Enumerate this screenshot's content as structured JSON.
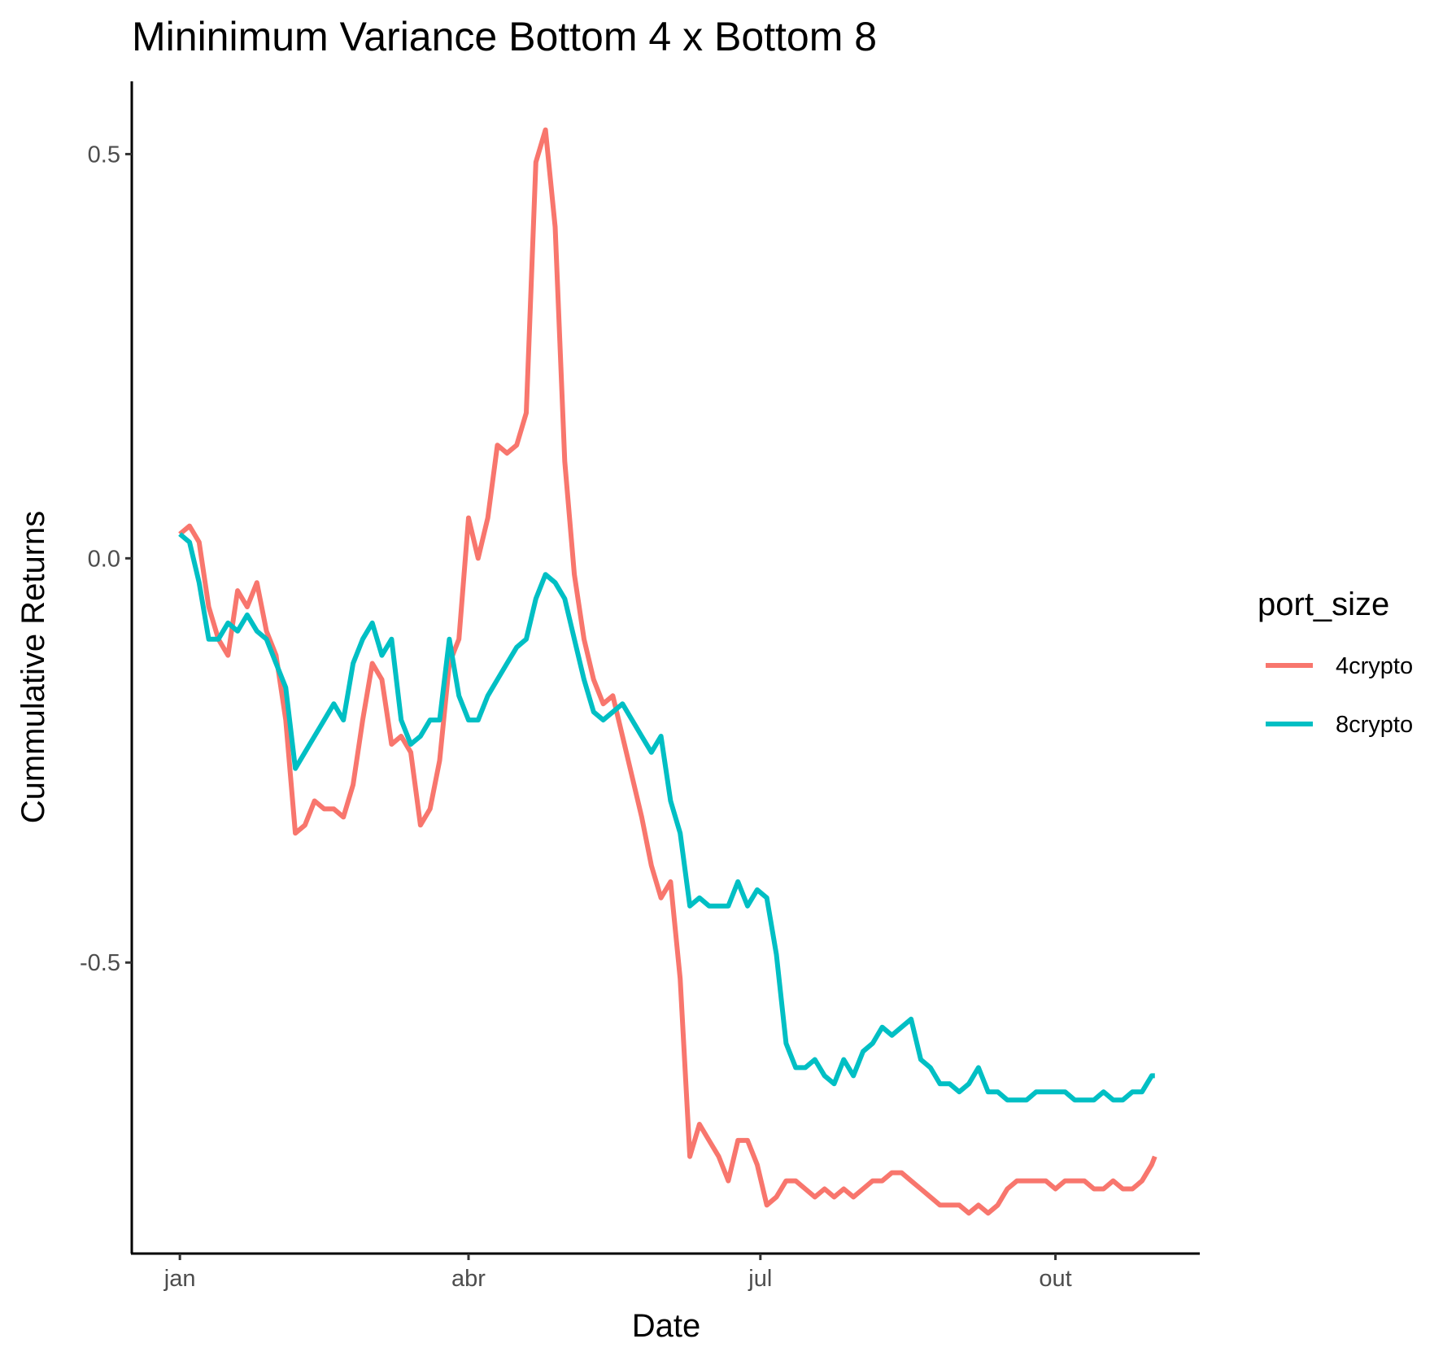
{
  "chart_data": {
    "type": "line",
    "title": "Mininimum Variance  Bottom 4 x Bottom 8",
    "xlabel": "Date",
    "ylabel": "Cummulative Returns",
    "x_ticks": [
      {
        "date": "2021-01-01",
        "label": "jan"
      },
      {
        "date": "2021-04-01",
        "label": "abr"
      },
      {
        "date": "2021-07-01",
        "label": "jul"
      },
      {
        "date": "2021-10-01",
        "label": "out"
      }
    ],
    "y_ticks": [
      {
        "value": 0.5,
        "label": "0.5"
      },
      {
        "value": 0.0,
        "label": "0.0"
      },
      {
        "value": -0.5,
        "label": "-0.5"
      }
    ],
    "xlim": [
      "2020-12-17",
      "2021-11-15"
    ],
    "ylim": [
      -0.86,
      0.59
    ],
    "grid": false,
    "legend": {
      "title": "port_size",
      "position": "right"
    },
    "series": [
      {
        "name": "4crypto",
        "color": "#F8766D",
        "points": [
          [
            "2021-01-01",
            0.03
          ],
          [
            "2021-01-04",
            0.04
          ],
          [
            "2021-01-07",
            0.02
          ],
          [
            "2021-01-10",
            -0.06
          ],
          [
            "2021-01-13",
            -0.1
          ],
          [
            "2021-01-16",
            -0.12
          ],
          [
            "2021-01-19",
            -0.04
          ],
          [
            "2021-01-22",
            -0.06
          ],
          [
            "2021-01-25",
            -0.03
          ],
          [
            "2021-01-28",
            -0.09
          ],
          [
            "2021-01-31",
            -0.12
          ],
          [
            "2021-02-03",
            -0.2
          ],
          [
            "2021-02-06",
            -0.34
          ],
          [
            "2021-02-09",
            -0.33
          ],
          [
            "2021-02-12",
            -0.3
          ],
          [
            "2021-02-15",
            -0.31
          ],
          [
            "2021-02-18",
            -0.31
          ],
          [
            "2021-02-21",
            -0.32
          ],
          [
            "2021-02-24",
            -0.28
          ],
          [
            "2021-02-27",
            -0.2
          ],
          [
            "2021-03-02",
            -0.13
          ],
          [
            "2021-03-05",
            -0.15
          ],
          [
            "2021-03-08",
            -0.23
          ],
          [
            "2021-03-11",
            -0.22
          ],
          [
            "2021-03-14",
            -0.24
          ],
          [
            "2021-03-17",
            -0.33
          ],
          [
            "2021-03-20",
            -0.31
          ],
          [
            "2021-03-23",
            -0.25
          ],
          [
            "2021-03-26",
            -0.13
          ],
          [
            "2021-03-29",
            -0.1
          ],
          [
            "2021-04-01",
            0.05
          ],
          [
            "2021-04-04",
            0.0
          ],
          [
            "2021-04-07",
            0.05
          ],
          [
            "2021-04-10",
            0.14
          ],
          [
            "2021-04-13",
            0.13
          ],
          [
            "2021-04-16",
            0.14
          ],
          [
            "2021-04-19",
            0.18
          ],
          [
            "2021-04-22",
            0.49
          ],
          [
            "2021-04-25",
            0.53
          ],
          [
            "2021-04-28",
            0.41
          ],
          [
            "2021-05-01",
            0.12
          ],
          [
            "2021-05-04",
            -0.02
          ],
          [
            "2021-05-07",
            -0.1
          ],
          [
            "2021-05-10",
            -0.15
          ],
          [
            "2021-05-13",
            -0.18
          ],
          [
            "2021-05-16",
            -0.17
          ],
          [
            "2021-05-19",
            -0.22
          ],
          [
            "2021-05-22",
            -0.27
          ],
          [
            "2021-05-25",
            -0.32
          ],
          [
            "2021-05-28",
            -0.38
          ],
          [
            "2021-05-31",
            -0.42
          ],
          [
            "2021-06-03",
            -0.4
          ],
          [
            "2021-06-06",
            -0.52
          ],
          [
            "2021-06-09",
            -0.74
          ],
          [
            "2021-06-12",
            -0.7
          ],
          [
            "2021-06-15",
            -0.72
          ],
          [
            "2021-06-18",
            -0.74
          ],
          [
            "2021-06-21",
            -0.77
          ],
          [
            "2021-06-24",
            -0.72
          ],
          [
            "2021-06-27",
            -0.72
          ],
          [
            "2021-06-30",
            -0.75
          ],
          [
            "2021-07-03",
            -0.8
          ],
          [
            "2021-07-06",
            -0.79
          ],
          [
            "2021-07-09",
            -0.77
          ],
          [
            "2021-07-12",
            -0.77
          ],
          [
            "2021-07-15",
            -0.78
          ],
          [
            "2021-07-18",
            -0.79
          ],
          [
            "2021-07-21",
            -0.78
          ],
          [
            "2021-07-24",
            -0.79
          ],
          [
            "2021-07-27",
            -0.78
          ],
          [
            "2021-07-30",
            -0.79
          ],
          [
            "2021-08-02",
            -0.78
          ],
          [
            "2021-08-05",
            -0.77
          ],
          [
            "2021-08-08",
            -0.77
          ],
          [
            "2021-08-11",
            -0.76
          ],
          [
            "2021-08-14",
            -0.76
          ],
          [
            "2021-08-17",
            -0.77
          ],
          [
            "2021-08-20",
            -0.78
          ],
          [
            "2021-08-23",
            -0.79
          ],
          [
            "2021-08-26",
            -0.8
          ],
          [
            "2021-08-29",
            -0.8
          ],
          [
            "2021-09-01",
            -0.8
          ],
          [
            "2021-09-04",
            -0.81
          ],
          [
            "2021-09-07",
            -0.8
          ],
          [
            "2021-09-10",
            -0.81
          ],
          [
            "2021-09-13",
            -0.8
          ],
          [
            "2021-09-16",
            -0.78
          ],
          [
            "2021-09-19",
            -0.77
          ],
          [
            "2021-09-22",
            -0.77
          ],
          [
            "2021-09-25",
            -0.77
          ],
          [
            "2021-09-28",
            -0.77
          ],
          [
            "2021-10-01",
            -0.78
          ],
          [
            "2021-10-04",
            -0.77
          ],
          [
            "2021-10-07",
            -0.77
          ],
          [
            "2021-10-10",
            -0.77
          ],
          [
            "2021-10-13",
            -0.78
          ],
          [
            "2021-10-16",
            -0.78
          ],
          [
            "2021-10-19",
            -0.77
          ],
          [
            "2021-10-22",
            -0.78
          ],
          [
            "2021-10-25",
            -0.78
          ],
          [
            "2021-10-28",
            -0.77
          ],
          [
            "2021-10-31",
            -0.75
          ],
          [
            "2021-11-01",
            -0.74
          ]
        ]
      },
      {
        "name": "8crypto",
        "color": "#00BFC4",
        "points": [
          [
            "2021-01-01",
            0.03
          ],
          [
            "2021-01-04",
            0.02
          ],
          [
            "2021-01-07",
            -0.03
          ],
          [
            "2021-01-10",
            -0.1
          ],
          [
            "2021-01-13",
            -0.1
          ],
          [
            "2021-01-16",
            -0.08
          ],
          [
            "2021-01-19",
            -0.09
          ],
          [
            "2021-01-22",
            -0.07
          ],
          [
            "2021-01-25",
            -0.09
          ],
          [
            "2021-01-28",
            -0.1
          ],
          [
            "2021-01-31",
            -0.13
          ],
          [
            "2021-02-03",
            -0.16
          ],
          [
            "2021-02-06",
            -0.26
          ],
          [
            "2021-02-09",
            -0.24
          ],
          [
            "2021-02-12",
            -0.22
          ],
          [
            "2021-02-15",
            -0.2
          ],
          [
            "2021-02-18",
            -0.18
          ],
          [
            "2021-02-21",
            -0.2
          ],
          [
            "2021-02-24",
            -0.13
          ],
          [
            "2021-02-27",
            -0.1
          ],
          [
            "2021-03-02",
            -0.08
          ],
          [
            "2021-03-05",
            -0.12
          ],
          [
            "2021-03-08",
            -0.1
          ],
          [
            "2021-03-11",
            -0.2
          ],
          [
            "2021-03-14",
            -0.23
          ],
          [
            "2021-03-17",
            -0.22
          ],
          [
            "2021-03-20",
            -0.2
          ],
          [
            "2021-03-23",
            -0.2
          ],
          [
            "2021-03-26",
            -0.1
          ],
          [
            "2021-03-29",
            -0.17
          ],
          [
            "2021-04-01",
            -0.2
          ],
          [
            "2021-04-04",
            -0.2
          ],
          [
            "2021-04-07",
            -0.17
          ],
          [
            "2021-04-10",
            -0.15
          ],
          [
            "2021-04-13",
            -0.13
          ],
          [
            "2021-04-16",
            -0.11
          ],
          [
            "2021-04-19",
            -0.1
          ],
          [
            "2021-04-22",
            -0.05
          ],
          [
            "2021-04-25",
            -0.02
          ],
          [
            "2021-04-28",
            -0.03
          ],
          [
            "2021-05-01",
            -0.05
          ],
          [
            "2021-05-04",
            -0.1
          ],
          [
            "2021-05-07",
            -0.15
          ],
          [
            "2021-05-10",
            -0.19
          ],
          [
            "2021-05-13",
            -0.2
          ],
          [
            "2021-05-16",
            -0.19
          ],
          [
            "2021-05-19",
            -0.18
          ],
          [
            "2021-05-22",
            -0.2
          ],
          [
            "2021-05-25",
            -0.22
          ],
          [
            "2021-05-28",
            -0.24
          ],
          [
            "2021-05-31",
            -0.22
          ],
          [
            "2021-06-03",
            -0.3
          ],
          [
            "2021-06-06",
            -0.34
          ],
          [
            "2021-06-09",
            -0.43
          ],
          [
            "2021-06-12",
            -0.42
          ],
          [
            "2021-06-15",
            -0.43
          ],
          [
            "2021-06-18",
            -0.43
          ],
          [
            "2021-06-21",
            -0.43
          ],
          [
            "2021-06-24",
            -0.4
          ],
          [
            "2021-06-27",
            -0.43
          ],
          [
            "2021-06-30",
            -0.41
          ],
          [
            "2021-07-03",
            -0.42
          ],
          [
            "2021-07-06",
            -0.49
          ],
          [
            "2021-07-09",
            -0.6
          ],
          [
            "2021-07-12",
            -0.63
          ],
          [
            "2021-07-15",
            -0.63
          ],
          [
            "2021-07-18",
            -0.62
          ],
          [
            "2021-07-21",
            -0.64
          ],
          [
            "2021-07-24",
            -0.65
          ],
          [
            "2021-07-27",
            -0.62
          ],
          [
            "2021-07-30",
            -0.64
          ],
          [
            "2021-08-02",
            -0.61
          ],
          [
            "2021-08-05",
            -0.6
          ],
          [
            "2021-08-08",
            -0.58
          ],
          [
            "2021-08-11",
            -0.59
          ],
          [
            "2021-08-14",
            -0.58
          ],
          [
            "2021-08-17",
            -0.57
          ],
          [
            "2021-08-20",
            -0.62
          ],
          [
            "2021-08-23",
            -0.63
          ],
          [
            "2021-08-26",
            -0.65
          ],
          [
            "2021-08-29",
            -0.65
          ],
          [
            "2021-09-01",
            -0.66
          ],
          [
            "2021-09-04",
            -0.65
          ],
          [
            "2021-09-07",
            -0.63
          ],
          [
            "2021-09-10",
            -0.66
          ],
          [
            "2021-09-13",
            -0.66
          ],
          [
            "2021-09-16",
            -0.67
          ],
          [
            "2021-09-19",
            -0.67
          ],
          [
            "2021-09-22",
            -0.67
          ],
          [
            "2021-09-25",
            -0.66
          ],
          [
            "2021-09-28",
            -0.66
          ],
          [
            "2021-10-01",
            -0.66
          ],
          [
            "2021-10-04",
            -0.66
          ],
          [
            "2021-10-07",
            -0.67
          ],
          [
            "2021-10-10",
            -0.67
          ],
          [
            "2021-10-13",
            -0.67
          ],
          [
            "2021-10-16",
            -0.66
          ],
          [
            "2021-10-19",
            -0.67
          ],
          [
            "2021-10-22",
            -0.67
          ],
          [
            "2021-10-25",
            -0.66
          ],
          [
            "2021-10-28",
            -0.66
          ],
          [
            "2021-10-31",
            -0.64
          ],
          [
            "2021-11-01",
            -0.64
          ]
        ]
      }
    ]
  }
}
